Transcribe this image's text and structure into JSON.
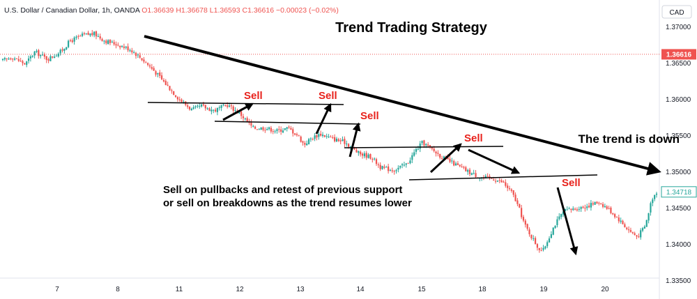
{
  "info_bar": {
    "symbol": "U.S. Dollar / Canadian Dollar, 1h, OANDA",
    "open": "O1.36639",
    "high": "H1.36678",
    "low": "L1.36593",
    "close": "C1.36616",
    "change": "−0.00023 (−0.02%)"
  },
  "currency": "CAD",
  "colors": {
    "up": "#26a69a",
    "down": "#ef5350",
    "annotation_red": "#e8221c",
    "arrow": "#000000"
  },
  "chart_data": {
    "type": "candlestick",
    "title": "Trend Trading Strategy",
    "symbol": "U.S. Dollar / Canadian Dollar, 1h, OANDA",
    "x_ticks": [
      "7",
      "8",
      "11",
      "12",
      "13",
      "14",
      "15",
      "18",
      "19",
      "20"
    ],
    "y_ticks": [
      "1.37000",
      "1.36500",
      "1.36000",
      "1.35500",
      "1.35000",
      "1.34500",
      "1.34000",
      "1.33500"
    ],
    "ylim": [
      1.3345,
      1.3735
    ],
    "current_price": {
      "label": "1.36616",
      "value": 1.36616
    },
    "last_price": {
      "label": "1.34718",
      "value": 1.34718
    },
    "price_path": [
      [
        0,
        1.3653
      ],
      [
        0.3,
        1.3658
      ],
      [
        0.7,
        1.3648
      ],
      [
        1.0,
        1.3665
      ],
      [
        1.4,
        1.3655
      ],
      [
        1.8,
        1.3665
      ],
      [
        2.1,
        1.368
      ],
      [
        2.5,
        1.3688
      ],
      [
        2.85,
        1.369
      ],
      [
        3.2,
        1.368
      ],
      [
        3.6,
        1.3675
      ],
      [
        4.0,
        1.3668
      ],
      [
        4.35,
        1.3655
      ],
      [
        4.7,
        1.364
      ],
      [
        5.1,
        1.362
      ],
      [
        5.5,
        1.36
      ],
      [
        5.9,
        1.3585
      ],
      [
        6.2,
        1.359
      ],
      [
        6.6,
        1.3584
      ],
      [
        7.0,
        1.3592
      ],
      [
        7.4,
        1.358
      ],
      [
        7.8,
        1.356
      ],
      [
        8.2,
        1.356
      ],
      [
        8.55,
        1.3556
      ],
      [
        8.9,
        1.356
      ],
      [
        9.2,
        1.355
      ],
      [
        9.4,
        1.3537
      ],
      [
        9.6,
        1.3545
      ],
      [
        9.9,
        1.3552
      ],
      [
        10.3,
        1.3545
      ],
      [
        10.7,
        1.354
      ],
      [
        11.1,
        1.3525
      ],
      [
        11.5,
        1.352
      ],
      [
        11.8,
        1.3505
      ],
      [
        12.2,
        1.3502
      ],
      [
        12.6,
        1.351
      ],
      [
        12.9,
        1.353
      ],
      [
        13.1,
        1.354
      ],
      [
        13.4,
        1.353
      ],
      [
        13.7,
        1.352
      ],
      [
        14.1,
        1.351
      ],
      [
        14.5,
        1.35
      ],
      [
        14.9,
        1.3492
      ],
      [
        15.3,
        1.349
      ],
      [
        15.6,
        1.3485
      ],
      [
        15.9,
        1.347
      ],
      [
        16.1,
        1.345
      ],
      [
        16.3,
        1.3425
      ],
      [
        16.5,
        1.341
      ],
      [
        16.7,
        1.3395
      ],
      [
        16.85,
        1.339
      ],
      [
        17.0,
        1.3405
      ],
      [
        17.2,
        1.3425
      ],
      [
        17.5,
        1.3445
      ],
      [
        17.8,
        1.3448
      ],
      [
        18.2,
        1.3452
      ],
      [
        18.6,
        1.3458
      ],
      [
        18.9,
        1.3448
      ],
      [
        19.2,
        1.3435
      ],
      [
        19.5,
        1.342
      ],
      [
        19.8,
        1.341
      ],
      [
        20.05,
        1.3425
      ],
      [
        20.25,
        1.3462
      ],
      [
        20.4,
        1.3472
      ]
    ],
    "annotations": {
      "sell_labels": [
        "Sell",
        "Sell",
        "Sell",
        "Sell",
        "Sell"
      ],
      "trend_label": "The trend is down",
      "note_line1": "Sell on pullbacks and retest of previous support",
      "note_line2": "or sell on breakdowns as the trend resumes lower"
    }
  }
}
